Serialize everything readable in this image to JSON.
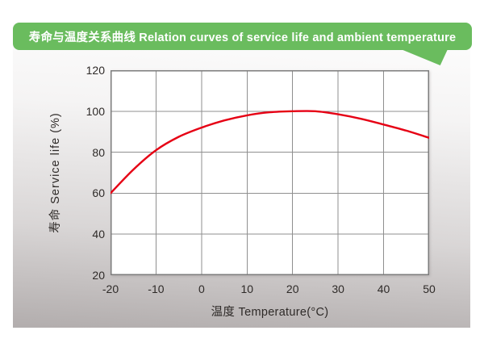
{
  "banner": {
    "text": "寿命与温度关系曲线 Relation curves of service life and ambient temperature",
    "bg_color": "#6abc5e",
    "text_color": "#ffffff"
  },
  "colors": {
    "panel_top": "#fefefe",
    "panel_bottom": "#b2adad",
    "grid": "#8f8f8f",
    "plot_border": "#7d7d7d",
    "label": "#2e2a28",
    "curve": "#e60014"
  },
  "chart_data": {
    "type": "line",
    "title": "寿命与温度关系曲线 Relation curves of service life and ambient temperature",
    "xlabel": "温度 Temperature(°C)",
    "ylabel": "寿命 Service life (%)",
    "xlim": [
      -20,
      50
    ],
    "ylim": [
      20,
      120
    ],
    "x_ticks": [
      -20,
      -10,
      0,
      10,
      20,
      30,
      40,
      50
    ],
    "y_ticks": [
      120,
      100,
      80,
      60,
      40,
      20
    ],
    "grid": true,
    "legend_position": "none",
    "plot_background": "#ffffff",
    "series": [
      {
        "name": "寿命 Service life",
        "color": "#e60014",
        "x": [
          -20,
          -15,
          -10,
          -5,
          0,
          5,
          10,
          15,
          20,
          25,
          30,
          35,
          40,
          45,
          50
        ],
        "y": [
          60,
          71.5,
          81,
          87.5,
          92,
          95.5,
          98,
          99.5,
          100,
          100,
          98.5,
          96.3,
          93.5,
          90.5,
          87
        ]
      }
    ]
  }
}
